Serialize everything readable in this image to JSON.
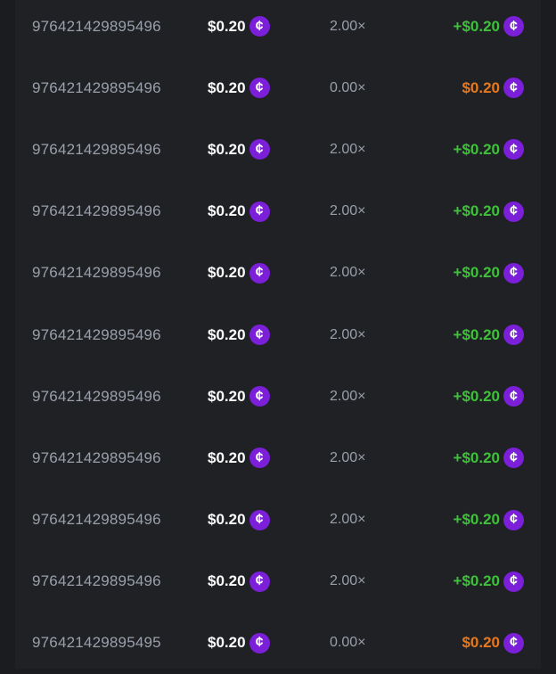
{
  "colors": {
    "win": "#3fc13a",
    "loss": "#e8781e",
    "coin": "#7b1fd9"
  },
  "coin_icon": "cent-coin-icon",
  "rows": [
    {
      "id": "976421429895496",
      "bet": "$0.20",
      "multiplier": "2.00×",
      "payout": "+$0.20",
      "result": "win"
    },
    {
      "id": "976421429895496",
      "bet": "$0.20",
      "multiplier": "0.00×",
      "payout": "$0.20",
      "result": "loss"
    },
    {
      "id": "976421429895496",
      "bet": "$0.20",
      "multiplier": "2.00×",
      "payout": "+$0.20",
      "result": "win"
    },
    {
      "id": "976421429895496",
      "bet": "$0.20",
      "multiplier": "2.00×",
      "payout": "+$0.20",
      "result": "win"
    },
    {
      "id": "976421429895496",
      "bet": "$0.20",
      "multiplier": "2.00×",
      "payout": "+$0.20",
      "result": "win"
    },
    {
      "id": "976421429895496",
      "bet": "$0.20",
      "multiplier": "2.00×",
      "payout": "+$0.20",
      "result": "win"
    },
    {
      "id": "976421429895496",
      "bet": "$0.20",
      "multiplier": "2.00×",
      "payout": "+$0.20",
      "result": "win"
    },
    {
      "id": "976421429895496",
      "bet": "$0.20",
      "multiplier": "2.00×",
      "payout": "+$0.20",
      "result": "win"
    },
    {
      "id": "976421429895496",
      "bet": "$0.20",
      "multiplier": "2.00×",
      "payout": "+$0.20",
      "result": "win"
    },
    {
      "id": "976421429895496",
      "bet": "$0.20",
      "multiplier": "2.00×",
      "payout": "+$0.20",
      "result": "win"
    },
    {
      "id": "976421429895495",
      "bet": "$0.20",
      "multiplier": "0.00×",
      "payout": "$0.20",
      "result": "loss"
    }
  ]
}
